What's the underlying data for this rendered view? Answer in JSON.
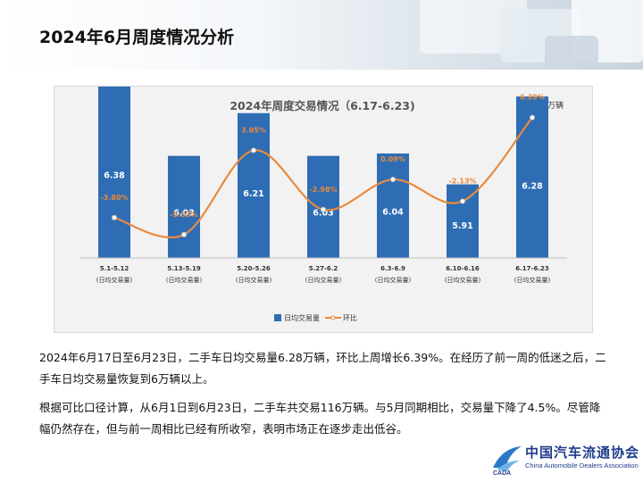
{
  "page": {
    "title": "2024年6月周度情况分析"
  },
  "chart_data": {
    "type": "bar",
    "title": "2024年周度交易情况（6.17-6.23)",
    "unit_label": "单位：万辆",
    "categories": [
      "5.1-5.12",
      "5.13-5.19",
      "5.20-5.26",
      "5.27-6.2",
      "6.3-6.9",
      "6.10-6.16",
      "6.17-6.23"
    ],
    "category_sublabel": "(日均交易量)",
    "series": [
      {
        "name": "日均交易量",
        "type": "bar",
        "color": "#2e6db4",
        "values": [
          6.38,
          6.03,
          6.21,
          6.03,
          6.04,
          5.91,
          6.28
        ],
        "labels": [
          "6.38",
          "6.03",
          "6.21",
          "6.03",
          "6.04",
          "5.91",
          "6.28"
        ]
      },
      {
        "name": "环比",
        "type": "line",
        "color": "#e98a3c",
        "values": [
          -3.8,
          -5.53,
          3.05,
          -2.98,
          0.09,
          -2.13,
          6.39
        ],
        "labels": [
          "-3.80%",
          "-5.53%",
          "3.05%",
          "-2.98%",
          "0.09%",
          "-2.13%",
          "6.39%"
        ]
      }
    ],
    "legend_position": "bottom"
  },
  "text": {
    "paragraph1": "2024年6月17日至6月23日，二手车日均交易量6.28万辆，环比上周增长6.39%。在经历了前一周的低迷之后，二手车日均交易量恢复到6万辆以上。",
    "paragraph2": "根据可比口径计算，从6月1日到6月23日，二手车共交易116万辆。与5月同期相比，交易量下降了4.5%。尽管降幅仍然存在，但与前一周相比已经有所收窄，表明市场正在逐步走出低谷。"
  },
  "logo": {
    "name_cn": "中国汽车流通协会",
    "name_en": "China Automobile Dealers Association",
    "mark_text": "CADA"
  },
  "colors": {
    "bar": "#2e6db4",
    "line": "#e98a3c",
    "panel_bg": "#f2f2f2",
    "brand": "#1f3d8c"
  }
}
